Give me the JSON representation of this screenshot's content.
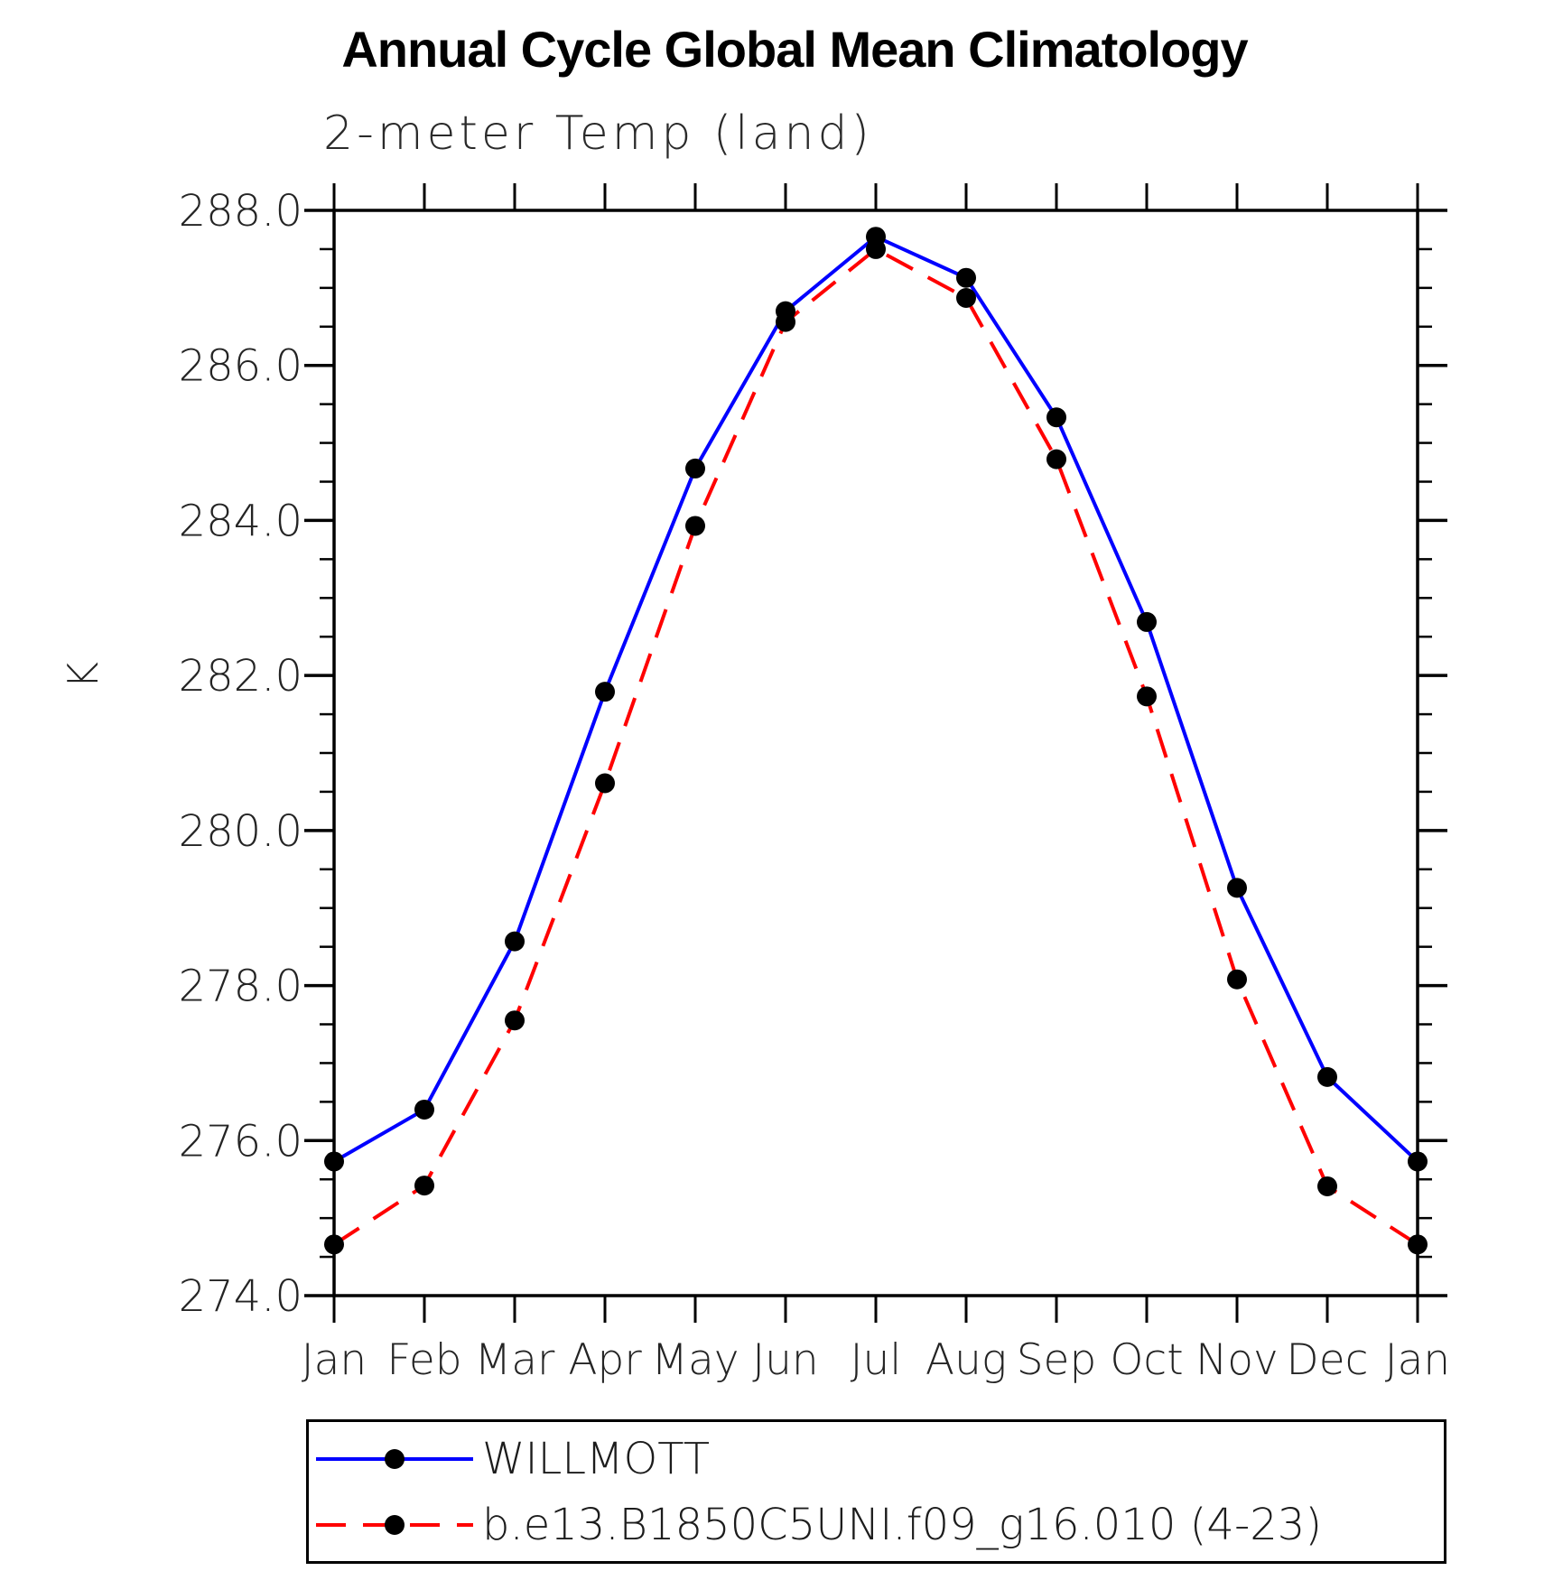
{
  "header": {
    "title": "Annual Cycle Global Mean Climatology",
    "subtitle": "2-meter Temp (land)"
  },
  "chart_data": {
    "type": "line",
    "title": "Annual Cycle Global Mean Climatology",
    "subtitle": "2-meter Temp (land)",
    "ylabel": "K",
    "xlabel": "",
    "categories": [
      "Jan",
      "Feb",
      "Mar",
      "Apr",
      "May",
      "Jun",
      "Jul",
      "Aug",
      "Sep",
      "Oct",
      "Nov",
      "Dec",
      "Jan"
    ],
    "series": [
      {
        "name": "WILLMOTT",
        "color": "#0000ff",
        "line_style": "solid",
        "values": [
          275.73,
          276.4,
          278.57,
          281.79,
          284.67,
          286.7,
          287.66,
          287.13,
          285.33,
          282.69,
          279.26,
          276.82,
          275.73
        ]
      },
      {
        "name": "b.e13.B1850C5UNI.f09_g16.010 (4-23)",
        "color": "#ff0000",
        "line_style": "dashed",
        "values": [
          274.66,
          275.42,
          277.55,
          280.61,
          283.93,
          286.56,
          287.5,
          286.87,
          284.79,
          281.73,
          278.08,
          275.41,
          274.66
        ]
      }
    ],
    "marker": {
      "shape": "circle",
      "color": "#000000",
      "radius": 11
    },
    "ylim": [
      274.0,
      288.0
    ],
    "ytick_major": 2.0,
    "ytick_minor": 0.5,
    "ytick_labels": [
      "288.0",
      "286.0",
      "284.0",
      "282.0",
      "280.0",
      "278.0",
      "276.0",
      "274.0"
    ],
    "grid": false,
    "axis_color": "#000000",
    "legend_position": "bottom"
  }
}
